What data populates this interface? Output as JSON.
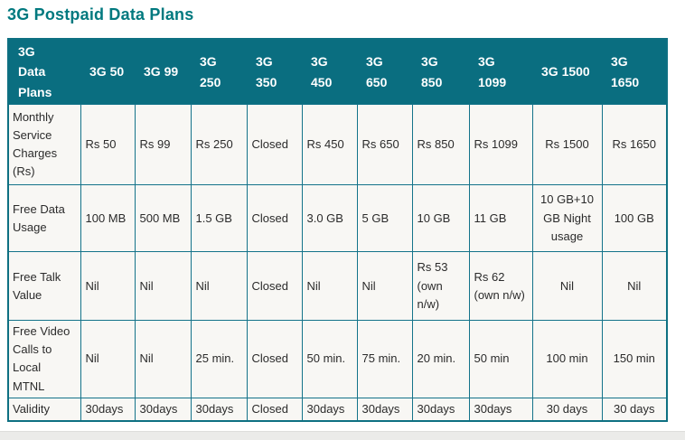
{
  "page": {
    "title": "3G Postpaid Data Plans"
  },
  "colors": {
    "title_text": "#00797F",
    "header_bg": "#0A6E80",
    "header_text": "#FFFFFF",
    "cell_bg": "#F8F7F4",
    "grid_border": "#14738A",
    "body_text": "#2B2B2B"
  },
  "table": {
    "header": [
      "3G Data Plans",
      "3G 50",
      "3G 99",
      "3G 250",
      "3G 350",
      "3G 450",
      "3G 650",
      "3G 850",
      "3G 1099",
      "3G 1500",
      "3G 1650"
    ],
    "rows": [
      {
        "label": "Monthly Service Charges (Rs)",
        "cells": [
          "Rs 50",
          "Rs 99",
          "Rs 250",
          "Closed",
          "Rs 450",
          "Rs 650",
          "Rs 850",
          "Rs 1099",
          "Rs 1500",
          "Rs 1650"
        ]
      },
      {
        "label": "Free Data Usage",
        "cells": [
          "100 MB",
          "500 MB",
          "1.5 GB",
          "Closed",
          "3.0 GB",
          "5 GB",
          "10 GB",
          "11 GB",
          "10 GB+10 GB Night usage",
          "100 GB"
        ]
      },
      {
        "label": "Free Talk Value",
        "cells": [
          "Nil",
          "Nil",
          "Nil",
          "Closed",
          "Nil",
          "Nil",
          "Rs 53 (own n/w)",
          "Rs 62 (own n/w)",
          "Nil",
          "Nil"
        ]
      },
      {
        "label": "Free Video Calls to Local MTNL",
        "cells": [
          "Nil",
          "Nil",
          "25 min.",
          "Closed",
          "50 min.",
          "75 min.",
          "20 min.",
          "50 min",
          "100 min",
          "150 min"
        ]
      },
      {
        "label": "Validity",
        "cells": [
          "30days",
          "30days",
          "30days",
          "Closed",
          "30days",
          "30days",
          "30days",
          "30days",
          "30 days",
          "30 days"
        ]
      }
    ]
  }
}
